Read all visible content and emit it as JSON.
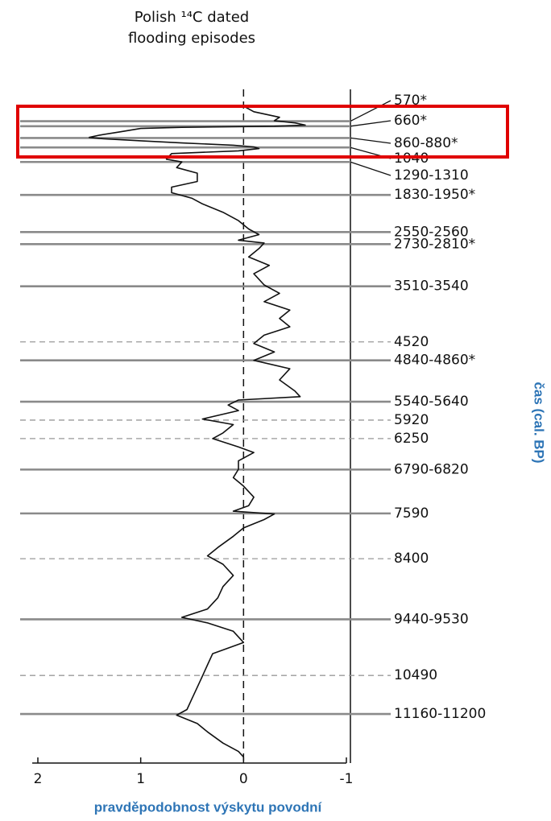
{
  "chart_data": {
    "type": "line",
    "title_lines": [
      "Polish ¹⁴C dated",
      "flooding episodes"
    ],
    "xlabel": "pravděpodobnost výskytu povodní",
    "ylabel": "čas (cal. BP)",
    "xlim": [
      2,
      -1
    ],
    "xticks": [
      2,
      1,
      0,
      -1
    ],
    "ylim": [
      0,
      12000
    ],
    "episodes": [
      {
        "label": "570*",
        "start": 570,
        "dashed": false
      },
      {
        "label": "660*",
        "start": 660,
        "dashed": false
      },
      {
        "label": "860-880*",
        "start": 860,
        "end": 880,
        "dashed": false
      },
      {
        "label": "1040",
        "start": 1040,
        "dashed": false
      },
      {
        "label": "1290-1310",
        "start": 1290,
        "end": 1310,
        "dashed": false
      },
      {
        "label": "1830-1950*",
        "start": 1830,
        "end": 1950,
        "dashed": false
      },
      {
        "label": "2550-2560",
        "start": 2550,
        "end": 2560,
        "dashed": false
      },
      {
        "label": "2730-2810*",
        "start": 2730,
        "end": 2810,
        "dashed": false
      },
      {
        "label": "3510-3540",
        "start": 3510,
        "end": 3540,
        "dashed": false
      },
      {
        "label": "4520",
        "start": 4520,
        "dashed": true
      },
      {
        "label": "4840-4860*",
        "start": 4840,
        "end": 4860,
        "dashed": false
      },
      {
        "label": "5540-5640",
        "start": 5540,
        "end": 5640,
        "dashed": false
      },
      {
        "label": "5920",
        "start": 5920,
        "dashed": true
      },
      {
        "label": "6250",
        "start": 6250,
        "dashed": true
      },
      {
        "label": "6790-6820",
        "start": 6790,
        "end": 6820,
        "dashed": false
      },
      {
        "label": "7590",
        "start": 7590,
        "dashed": false
      },
      {
        "label": "8400",
        "start": 8400,
        "dashed": true
      },
      {
        "label": "9440-9530",
        "start": 9440,
        "end": 9530,
        "dashed": false
      },
      {
        "label": "10490",
        "start": 10490,
        "dashed": true
      },
      {
        "label": "11160-11200",
        "start": 11160,
        "end": 11200,
        "dashed": false
      }
    ],
    "series": [
      {
        "color": "#111111",
        "x": [
          300,
          400,
          500,
          560,
          600,
          640,
          660,
          680,
          700,
          760,
          820,
          860,
          880,
          920,
          960,
          1000,
          1030,
          1060,
          1100,
          1150,
          1250,
          1300,
          1400,
          1500,
          1650,
          1750,
          1850,
          1950,
          2050,
          2200,
          2350,
          2500,
          2600,
          2700,
          2750,
          2850,
          3000,
          3150,
          3300,
          3500,
          3650,
          3800,
          3950,
          4100,
          4250,
          4400,
          4550,
          4700,
          4850,
          5000,
          5200,
          5400,
          5500,
          5560,
          5650,
          5750,
          5900,
          6000,
          6150,
          6250,
          6400,
          6500,
          6650,
          6800,
          6950,
          7100,
          7300,
          7450,
          7550,
          7600,
          7700,
          7850,
          8000,
          8200,
          8350,
          8500,
          8700,
          8900,
          9100,
          9300,
          9450,
          9550,
          9700,
          9900,
          10100,
          10300,
          10500,
          10700,
          10900,
          11100,
          11200,
          11350,
          11500,
          11700,
          11850,
          11950
        ],
        "values": [
          0,
          -0.1,
          -0.35,
          -0.3,
          -0.5,
          -0.6,
          -0.3,
          0.6,
          1.0,
          1.2,
          1.4,
          1.5,
          1.4,
          1.0,
          0.6,
          0.1,
          -0.1,
          -0.15,
          0.05,
          0.7,
          0.75,
          0.6,
          0.65,
          0.45,
          0.45,
          0.7,
          0.7,
          0.5,
          0.4,
          0.2,
          0.05,
          -0.05,
          -0.15,
          0.05,
          -0.2,
          -0.15,
          -0.05,
          -0.25,
          -0.1,
          -0.2,
          -0.35,
          -0.2,
          -0.45,
          -0.35,
          -0.45,
          -0.2,
          -0.1,
          -0.3,
          -0.1,
          -0.45,
          -0.35,
          -0.5,
          -0.55,
          0.05,
          0.15,
          0.05,
          0.4,
          0.1,
          0.2,
          0.3,
          0.05,
          -0.1,
          0.05,
          0.05,
          0.1,
          0.0,
          -0.1,
          -0.05,
          0.1,
          -0.3,
          -0.2,
          0.0,
          0.1,
          0.25,
          0.35,
          0.2,
          0.1,
          0.2,
          0.25,
          0.35,
          0.6,
          0.35,
          0.1,
          0.0,
          0.3,
          0.35,
          0.4,
          0.45,
          0.5,
          0.55,
          0.65,
          0.45,
          0.35,
          0.2,
          0.05,
          0.0
        ]
      }
    ]
  }
}
